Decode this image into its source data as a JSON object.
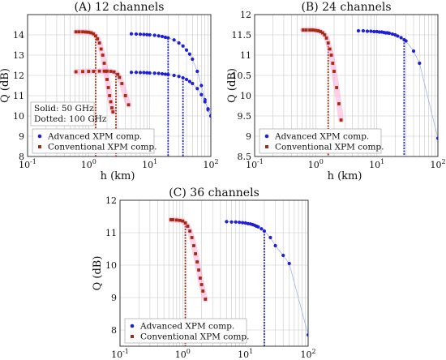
{
  "colors": {
    "advanced": "#1f1fd6",
    "conventional": "#a52a12",
    "glow": "#ff7fbf",
    "fit": "#9fb4e8"
  },
  "chart_data": [
    {
      "type": "scatter",
      "title": "(A) 12 channels",
      "xlabel": "h (km)",
      "ylabel": "Q (dB)",
      "xscale": "log",
      "xlim": [
        0.1,
        100
      ],
      "ylim": [
        8,
        15
      ],
      "yticks": [
        8,
        9,
        10,
        11,
        12,
        13,
        14
      ],
      "xtick_labels": [
        "10-1",
        "100",
        "101",
        "102"
      ],
      "grid": true,
      "legend": {
        "placement": "bottom-left",
        "entries": [
          "Advanced XPM comp.",
          "Conventional XPM comp."
        ]
      },
      "annotation": [
        "Solid: 50 GHz",
        "Dotted: 100 GHz"
      ],
      "series": [
        {
          "name": "Advanced XPM comp.",
          "style": "solid",
          "x": [
            5,
            6,
            7,
            8,
            9,
            10,
            12,
            14,
            16,
            18,
            20,
            25,
            30,
            35,
            40,
            45,
            50,
            60,
            70,
            80,
            90,
            100
          ],
          "y": [
            14.05,
            14.04,
            14.03,
            14.02,
            14.01,
            14.0,
            13.98,
            13.95,
            13.92,
            13.88,
            13.85,
            13.75,
            13.6,
            13.45,
            13.25,
            13.05,
            12.8,
            12.2,
            11.5,
            10.8,
            10.3,
            10.0
          ]
        },
        {
          "name": "Advanced XPM comp.",
          "style": "dotted",
          "x": [
            5,
            6,
            7,
            8,
            9,
            10,
            12,
            14,
            16,
            18,
            20,
            25,
            30,
            35,
            40,
            45,
            50,
            60,
            70,
            80,
            90,
            100
          ],
          "y": [
            12.15,
            12.15,
            12.14,
            12.14,
            12.13,
            12.12,
            12.11,
            12.1,
            12.08,
            12.06,
            12.04,
            12.0,
            11.95,
            11.88,
            11.8,
            11.7,
            11.6,
            11.35,
            11.05,
            10.7,
            10.35,
            10.0
          ]
        },
        {
          "name": "Conventional XPM comp.",
          "style": "solid",
          "x": [
            0.62,
            0.7,
            0.8,
            0.9,
            1.0,
            1.1,
            1.2,
            1.3,
            1.4,
            1.5,
            1.6,
            1.7,
            1.8,
            1.9,
            2.0,
            2.1,
            2.2,
            2.3,
            2.4,
            2.5
          ],
          "y": [
            14.15,
            14.15,
            14.15,
            14.14,
            14.13,
            14.1,
            14.05,
            13.95,
            13.8,
            13.6,
            13.3,
            13.0,
            12.6,
            12.2,
            11.8,
            11.4,
            11.0,
            10.7,
            10.4,
            10.2
          ]
        },
        {
          "name": "Conventional XPM comp.",
          "style": "dotted",
          "x": [
            0.62,
            0.8,
            1.0,
            1.2,
            1.5,
            1.8,
            2.0,
            2.3,
            2.6,
            3.0,
            3.2,
            3.5,
            4.0,
            4.5
          ],
          "y": [
            12.18,
            12.19,
            12.2,
            12.2,
            12.21,
            12.21,
            12.21,
            12.2,
            12.17,
            12.05,
            11.9,
            11.6,
            11.0,
            10.55
          ]
        }
      ],
      "optimum_lines": [
        {
          "series": "Advanced XPM comp.",
          "style": "solid",
          "x": 20,
          "y_top": 13.85
        },
        {
          "series": "Advanced XPM comp.",
          "style": "dotted",
          "x": 35,
          "y_top": 11.88
        },
        {
          "series": "Conventional XPM comp.",
          "style": "solid",
          "x": 1.3,
          "y_top": 13.95
        },
        {
          "series": "Conventional XPM comp.",
          "style": "dotted",
          "x": 2.8,
          "y_top": 12.12
        }
      ]
    },
    {
      "type": "scatter",
      "title": "(B) 24 channels",
      "xlabel": "h (km)",
      "ylabel": "Q (dB)",
      "xscale": "log",
      "xlim": [
        0.1,
        100
      ],
      "ylim": [
        8.5,
        12
      ],
      "yticks": [
        8.5,
        9,
        9.5,
        10,
        10.5,
        11,
        11.5,
        12
      ],
      "xtick_labels": [
        "10-1",
        "100",
        "101",
        "102"
      ],
      "grid": true,
      "legend": {
        "placement": "bottom-left",
        "entries": [
          "Advanced XPM comp.",
          "Conventional XPM comp."
        ]
      },
      "series": [
        {
          "name": "Advanced XPM comp.",
          "x": [
            5,
            6,
            7,
            8,
            9,
            10,
            11,
            12,
            13,
            14,
            15,
            16,
            18,
            20,
            22,
            25,
            28,
            30,
            40,
            50,
            100
          ],
          "y": [
            11.6,
            11.6,
            11.59,
            11.59,
            11.58,
            11.58,
            11.57,
            11.57,
            11.56,
            11.55,
            11.55,
            11.54,
            11.52,
            11.5,
            11.47,
            11.43,
            11.38,
            11.35,
            11.1,
            10.8,
            8.95
          ]
        },
        {
          "name": "Conventional XPM comp.",
          "x": [
            0.62,
            0.7,
            0.8,
            0.9,
            1.0,
            1.1,
            1.2,
            1.3,
            1.4,
            1.5,
            1.6,
            1.7,
            1.8,
            1.9,
            2.0,
            2.2,
            2.4,
            2.6
          ],
          "y": [
            11.62,
            11.62,
            11.62,
            11.62,
            11.61,
            11.6,
            11.58,
            11.55,
            11.5,
            11.42,
            11.3,
            11.15,
            11.0,
            10.8,
            10.6,
            10.2,
            9.8,
            9.4
          ]
        }
      ],
      "optimum_lines": [
        {
          "series": "Advanced XPM comp.",
          "x": 28,
          "y_top": 11.38
        },
        {
          "series": "Conventional XPM comp.",
          "x": 1.6,
          "y_top": 11.3
        }
      ]
    },
    {
      "type": "scatter",
      "title": "(C) 36 channels",
      "xlabel": "h (km)",
      "ylabel": "Q (dB)",
      "xscale": "log",
      "xlim": [
        0.1,
        100
      ],
      "ylim": [
        7.5,
        12
      ],
      "yticks": [
        8,
        9,
        10,
        11,
        12
      ],
      "xtick_labels": [
        "10-1",
        "100",
        "101",
        "102"
      ],
      "grid": true,
      "legend": {
        "placement": "bottom-left",
        "entries": [
          "Advanced XPM comp.",
          "Conventional XPM comp."
        ]
      },
      "series": [
        {
          "name": "Advanced XPM comp.",
          "x": [
            5,
            6,
            7,
            8,
            9,
            10,
            11,
            12,
            13,
            14,
            15,
            16,
            18,
            20,
            25,
            30,
            40,
            50,
            100
          ],
          "y": [
            11.34,
            11.33,
            11.33,
            11.32,
            11.31,
            11.3,
            11.28,
            11.27,
            11.25,
            11.23,
            11.2,
            11.18,
            11.12,
            11.05,
            10.85,
            10.6,
            10.3,
            10.05,
            7.85
          ]
        },
        {
          "name": "Conventional XPM comp.",
          "x": [
            0.65,
            0.7,
            0.8,
            0.9,
            1.0,
            1.1,
            1.2,
            1.3,
            1.4,
            1.5,
            1.6,
            1.7,
            1.8,
            1.9,
            2.0,
            2.1,
            2.3
          ],
          "y": [
            11.4,
            11.4,
            11.39,
            11.38,
            11.36,
            11.3,
            11.2,
            11.05,
            10.85,
            10.6,
            10.35,
            10.1,
            9.85,
            9.6,
            9.4,
            9.2,
            8.95
          ]
        }
      ],
      "optimum_lines": [
        {
          "series": "Advanced XPM comp.",
          "x": 20,
          "y_top": 11.05
        },
        {
          "series": "Conventional XPM comp.",
          "x": 1.1,
          "y_top": 11.3
        }
      ]
    }
  ]
}
